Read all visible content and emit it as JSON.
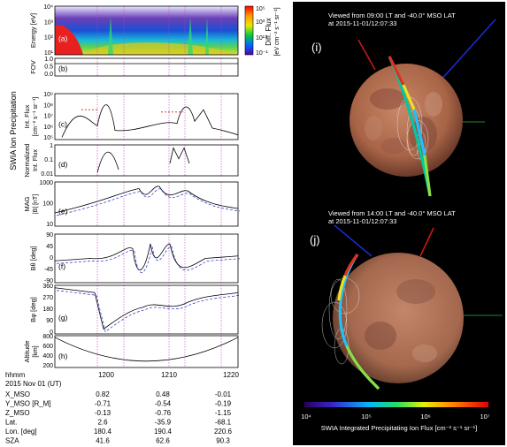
{
  "left": {
    "panels": [
      {
        "id": "a",
        "letter": "(a)",
        "ylabel": "Energy [eV]",
        "ticks": [
          "10⁴",
          "10³",
          "10²",
          "10¹"
        ]
      },
      {
        "id": "b",
        "letter": "(b)",
        "ylabel": "FOV",
        "ticks": [
          "1.0",
          "0.5",
          "0.0"
        ]
      },
      {
        "id": "c",
        "letter": "(c)",
        "ylabel": "Int. Flux",
        "ylabel2": "[cm⁻² s⁻¹ sr⁻¹]",
        "ticks": [
          "10⁹",
          "10⁸",
          "10⁷",
          "10⁶",
          "10⁵"
        ]
      },
      {
        "id": "d",
        "letter": "(d)",
        "ylabel": "Normalized",
        "ylabel2": "Int. Flux",
        "ticks": [
          "1",
          "0.1",
          "0.01"
        ]
      },
      {
        "id": "e",
        "letter": "(e)",
        "ylabel": "MAG",
        "ylabel2": "|B| [nT]",
        "ticks": [
          "1000",
          "100",
          "10"
        ]
      },
      {
        "id": "f",
        "letter": "(f)",
        "ylabel": "Bθ [deg]",
        "ticks": [
          "90",
          "45",
          "0",
          "-45",
          "-90"
        ]
      },
      {
        "id": "g",
        "letter": "(g)",
        "ylabel": "Bφ [deg]",
        "ticks": [
          "360",
          "270",
          "180",
          "90",
          "0"
        ]
      },
      {
        "id": "h",
        "letter": "(h)",
        "ylabel": "Altitude",
        "ylabel2": "[km]",
        "ticks": [
          "800",
          "600",
          "400",
          "200"
        ]
      }
    ],
    "group_label": "SWIA  Ion Precipitation",
    "colorbar": {
      "title": "Diff. Flux",
      "units": "[eV cm⁻² s⁻¹ sr⁻¹]",
      "ticks": [
        "10⁵",
        "10³",
        "10¹",
        "10⁻¹"
      ]
    },
    "xticks": [
      "1200",
      "1210",
      "1220"
    ],
    "ephemeris": {
      "header": "hhmm",
      "date": "2015 Nov 01 (UT)",
      "rows": [
        {
          "label": "X_MSO",
          "values": [
            "0.82",
            "0.48",
            "-0.01"
          ]
        },
        {
          "label": "Y_MSO [R_M]",
          "values": [
            "-0.71",
            "-0.54",
            "-0.19"
          ]
        },
        {
          "label": "Z_MSO",
          "values": [
            "-0.13",
            "-0.76",
            "-1.15"
          ]
        },
        {
          "label": "Lat.",
          "values": [
            "2.6",
            "-35.9",
            "-68.1"
          ]
        },
        {
          "label": "Lon. [deg]",
          "values": [
            "180.4",
            "190.4",
            "220.6"
          ]
        },
        {
          "label": "SZA",
          "values": [
            "41.6",
            "62.6",
            "90.3"
          ]
        }
      ]
    }
  },
  "right": {
    "view_i": {
      "letter": "(i)",
      "line1": "Viewed from 09:00 LT and -40.0° MSO LAT",
      "line2": "at 2015-11-01/12:07:33"
    },
    "view_j": {
      "letter": "(j)",
      "line1": "Viewed from 14:00 LT and -40.0° MSO LAT",
      "line2": "at 2015-11-01/12:07:33"
    },
    "colorbar": {
      "ticks": [
        "10⁴",
        "10⁵",
        "10⁶",
        "10⁷"
      ],
      "label": "SWIA Integrated Precipitating Ion Flux [cm⁻² s⁻¹ sr⁻¹]"
    },
    "colors": {
      "background": "#000000",
      "mars": "#b5714f"
    }
  }
}
